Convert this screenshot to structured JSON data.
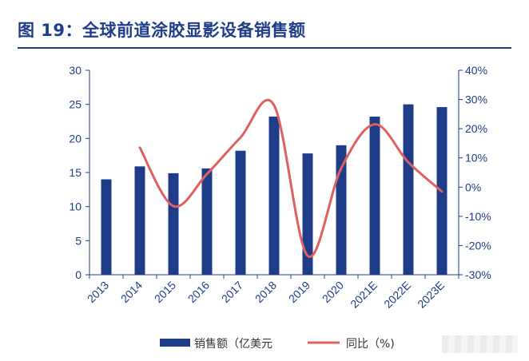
{
  "figure": {
    "title": "图 19：全球前道涂胶显影设备销售额"
  },
  "chart_data": {
    "type": "bar",
    "categories": [
      "2013",
      "2014",
      "2015",
      "2016",
      "2017",
      "2018",
      "2019",
      "2020",
      "2021E",
      "2022E",
      "2023E"
    ],
    "series": [
      {
        "name": "销售额（亿美元",
        "type": "bar",
        "axis": "left",
        "color": "#1f3c88",
        "values": [
          14.0,
          15.9,
          14.9,
          15.6,
          18.2,
          23.2,
          17.8,
          19.0,
          23.2,
          25.0,
          24.6
        ]
      },
      {
        "name": "同比（%)",
        "type": "line",
        "axis": "right",
        "color": "#e06060",
        "values": [
          null,
          13.5,
          -6.5,
          4.5,
          17.0,
          28.0,
          -23.5,
          6.5,
          21.5,
          8.5,
          -1.5
        ]
      }
    ],
    "y_left": {
      "ylim": [
        0,
        30
      ],
      "ticks": [
        "0",
        "5",
        "10",
        "15",
        "20",
        "25",
        "30"
      ]
    },
    "y_right": {
      "ylim": [
        -30,
        40
      ],
      "ticks": [
        "-30%",
        "-20%",
        "-10%",
        "0%",
        "10%",
        "20%",
        "30%",
        "40%"
      ]
    },
    "legend": "bottom-center",
    "grid": false
  }
}
